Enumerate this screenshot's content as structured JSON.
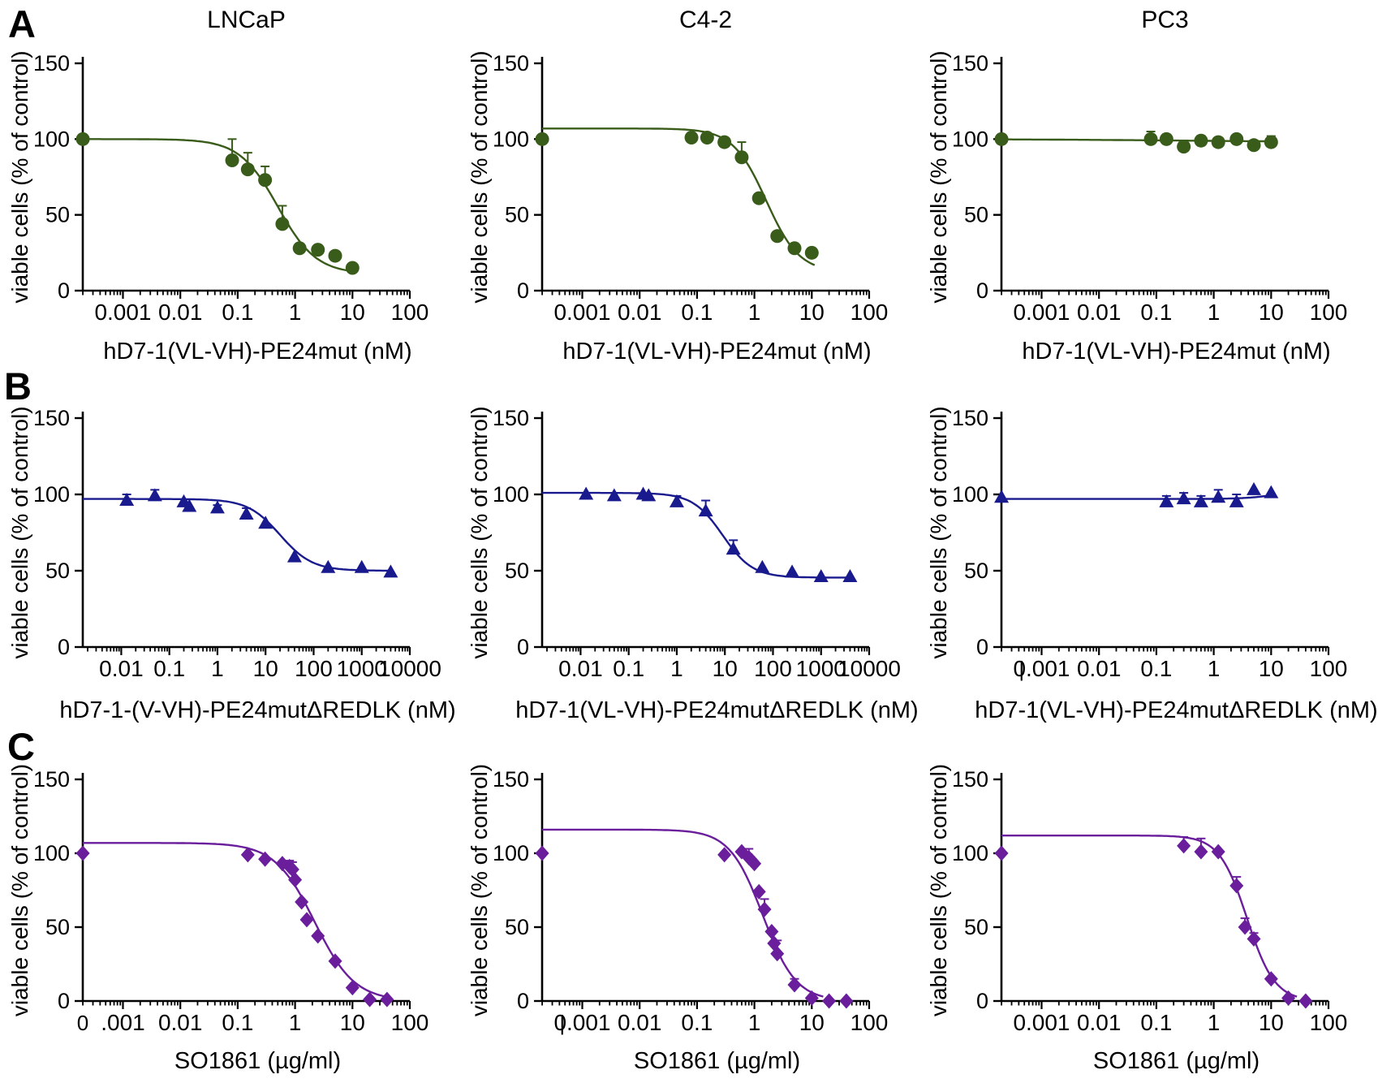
{
  "figure": {
    "panel_letters": [
      "A",
      "B",
      "C"
    ],
    "column_titles": [
      "LNCaP",
      "C4-2",
      "PC3"
    ],
    "y_axis_label": "viable cells (% of control)"
  },
  "colors": {
    "green": "#395C1A",
    "navy": "#1A1A8F",
    "purple": "#6A1E9C",
    "axis": "#000000"
  },
  "chart_data": [
    {
      "id": "A1",
      "row": "A",
      "cell_line": "LNCaP",
      "title": "LNCaP",
      "type": "scatter",
      "marker": "circle",
      "color": "#395C1A",
      "xlabel": "hD7-1(VL-VH)-PE24mut (nM)",
      "ylabel": "viable cells (% of control)",
      "xlog_min": -3.7,
      "xlog_max": 2,
      "ylim": [
        0,
        150
      ],
      "y_ticks": [
        0,
        50,
        100,
        150
      ],
      "x_decade_labels": {
        "-3": "0.001",
        "-2": "0.01",
        "-1": "0.1",
        "0": "1",
        "1": "10",
        "2": "100"
      },
      "extra_x_labels": [],
      "points": [
        {
          "x": 0.0002,
          "y": 100
        },
        {
          "x": 0.08,
          "y": 86,
          "err": 14
        },
        {
          "x": 0.15,
          "y": 80,
          "err": 11
        },
        {
          "x": 0.3,
          "y": 73,
          "err": 9
        },
        {
          "x": 0.6,
          "y": 44,
          "err": 12
        },
        {
          "x": 1.2,
          "y": 28
        },
        {
          "x": 2.5,
          "y": 27
        },
        {
          "x": 5,
          "y": 23
        },
        {
          "x": 10,
          "y": 15
        }
      ],
      "curve": {
        "top": 100,
        "bottom": 11,
        "ec50": 0.5,
        "hill": 1.3,
        "xlog_end": 1.03
      }
    },
    {
      "id": "A2",
      "row": "A",
      "cell_line": "C4-2",
      "title": "C4-2",
      "type": "scatter",
      "marker": "circle",
      "color": "#395C1A",
      "xlabel": "hD7-1(VL-VH)-PE24mut (nM)",
      "ylabel": "viable cells (% of control)",
      "xlog_min": -3.7,
      "xlog_max": 2,
      "ylim": [
        0,
        150
      ],
      "y_ticks": [
        0,
        50,
        100,
        150
      ],
      "x_decade_labels": {
        "-3": "0.001",
        "-2": "0.01",
        "-1": "0.1",
        "0": "1",
        "1": "10",
        "2": "100"
      },
      "extra_x_labels": [],
      "points": [
        {
          "x": 0.0002,
          "y": 100
        },
        {
          "x": 0.08,
          "y": 101,
          "err": 3
        },
        {
          "x": 0.15,
          "y": 101,
          "err": 3
        },
        {
          "x": 0.3,
          "y": 98
        },
        {
          "x": 0.6,
          "y": 88,
          "err": 10
        },
        {
          "x": 1.2,
          "y": 61
        },
        {
          "x": 2.5,
          "y": 36
        },
        {
          "x": 5,
          "y": 28
        },
        {
          "x": 10,
          "y": 25
        }
      ],
      "curve": {
        "top": 107,
        "bottom": 12,
        "ec50": 1.6,
        "hill": 1.5,
        "xlog_end": 1.05
      }
    },
    {
      "id": "A3",
      "row": "A",
      "cell_line": "PC3",
      "title": "PC3",
      "type": "scatter",
      "marker": "circle",
      "color": "#395C1A",
      "xlabel": "hD7-1(VL-VH)-PE24mut (nM)",
      "ylabel": "viable cells (% of control)",
      "xlog_min": -3.7,
      "xlog_max": 2,
      "ylim": [
        0,
        150
      ],
      "y_ticks": [
        0,
        50,
        100,
        150
      ],
      "x_decade_labels": {
        "-3": "0.001",
        "-2": "0.01",
        "-1": "0.1",
        "0": "1",
        "1": "10",
        "2": "100"
      },
      "extra_x_labels": [],
      "points": [
        {
          "x": 0.0002,
          "y": 100
        },
        {
          "x": 0.08,
          "y": 100,
          "err": 5
        },
        {
          "x": 0.15,
          "y": 100,
          "err": 3
        },
        {
          "x": 0.3,
          "y": 95
        },
        {
          "x": 0.6,
          "y": 99,
          "err": 3
        },
        {
          "x": 1.2,
          "y": 98
        },
        {
          "x": 2.5,
          "y": 100
        },
        {
          "x": 5,
          "y": 96
        },
        {
          "x": 10,
          "y": 98,
          "err": 4
        }
      ],
      "curve": {
        "top": 100,
        "bottom": 98,
        "ec50": 0.3,
        "hill": 0.3,
        "xlog_end": 1.03
      }
    },
    {
      "id": "B1",
      "row": "B",
      "cell_line": "LNCaP",
      "title": null,
      "type": "scatter",
      "marker": "triangle",
      "color": "#1A1A8F",
      "xlabel": "hD7-1-(V-VH)-PE24mutΔREDLK (nM)",
      "ylabel": "viable cells (% of control)",
      "xlog_min": -2.8,
      "xlog_max": 4,
      "ylim": [
        0,
        150
      ],
      "y_ticks": [
        0,
        50,
        100,
        150
      ],
      "x_decade_labels": {
        "-2": "0.01",
        "-1": "0.1",
        "0": "1",
        "1": "10",
        "2": "100",
        "3": "1000",
        "4": "10000"
      },
      "extra_x_labels": [],
      "points": [
        {
          "x": 0.013,
          "y": 96,
          "err": 4
        },
        {
          "x": 0.05,
          "y": 99,
          "err": 4
        },
        {
          "x": 0.2,
          "y": 95
        },
        {
          "x": 0.26,
          "y": 92
        },
        {
          "x": 1,
          "y": 91,
          "err": 2
        },
        {
          "x": 4,
          "y": 87,
          "err": 4
        },
        {
          "x": 10,
          "y": 81
        },
        {
          "x": 40,
          "y": 59
        },
        {
          "x": 200,
          "y": 52
        },
        {
          "x": 1000,
          "y": 52
        },
        {
          "x": 4000,
          "y": 49
        }
      ],
      "curve": {
        "top": 97,
        "bottom": 50,
        "ec50": 20,
        "hill": 1.3,
        "xlog_end": 3.62
      }
    },
    {
      "id": "B2",
      "row": "B",
      "cell_line": "C4-2",
      "title": null,
      "type": "scatter",
      "marker": "triangle",
      "color": "#1A1A8F",
      "xlabel": "hD7-1(VL-VH)-PE24mutΔREDLK (nM)",
      "ylabel": "viable cells (% of control)",
      "xlog_min": -2.8,
      "xlog_max": 4,
      "ylim": [
        0,
        150
      ],
      "y_ticks": [
        0,
        50,
        100,
        150
      ],
      "x_decade_labels": {
        "-2": "0.01",
        "-1": "0.1",
        "0": "1",
        "1": "10",
        "2": "100",
        "3": "1000",
        "4": "10000"
      },
      "extra_x_labels": [],
      "points": [
        {
          "x": 0.013,
          "y": 100
        },
        {
          "x": 0.05,
          "y": 99
        },
        {
          "x": 0.2,
          "y": 100
        },
        {
          "x": 0.26,
          "y": 99
        },
        {
          "x": 1,
          "y": 95,
          "err": 4
        },
        {
          "x": 4,
          "y": 89,
          "err": 7
        },
        {
          "x": 15,
          "y": 64,
          "err": 6
        },
        {
          "x": 60,
          "y": 52
        },
        {
          "x": 250,
          "y": 49
        },
        {
          "x": 1000,
          "y": 46
        },
        {
          "x": 4000,
          "y": 46
        }
      ],
      "curve": {
        "top": 101,
        "bottom": 45.5,
        "ec50": 9,
        "hill": 1.4,
        "xlog_end": 3.62
      }
    },
    {
      "id": "B3",
      "row": "B",
      "cell_line": "PC3",
      "title": null,
      "type": "scatter",
      "marker": "triangle",
      "color": "#1A1A8F",
      "xlabel": "hD7-1(VL-VH)-PE24mutΔREDLK (nM)",
      "ylabel": "viable cells (% of control)",
      "xlog_min": -3.7,
      "xlog_max": 2,
      "ylim": [
        0,
        150
      ],
      "y_ticks": [
        0,
        50,
        100,
        150
      ],
      "x_decade_labels": {
        "-3": "0.001",
        "-2": "0.01",
        "-1": "0.1",
        "0": "1",
        "1": "10",
        "2": "100"
      },
      "extra_x_labels": [
        {
          "log": -3.35,
          "label": "|"
        }
      ],
      "points": [
        {
          "x": 0.0002,
          "y": 98
        },
        {
          "x": 0.15,
          "y": 95,
          "err": 4
        },
        {
          "x": 0.3,
          "y": 97,
          "err": 4
        },
        {
          "x": 0.6,
          "y": 95,
          "err": 4
        },
        {
          "x": 1.2,
          "y": 98,
          "err": 5
        },
        {
          "x": 2.5,
          "y": 95,
          "err": 5
        },
        {
          "x": 5,
          "y": 103
        },
        {
          "x": 10,
          "y": 101
        }
      ],
      "curve": {
        "top": 97,
        "bottom": 104,
        "ec50": 15,
        "hill": 1.5,
        "xlog_end": 1.08
      }
    },
    {
      "id": "C1",
      "row": "C",
      "cell_line": "LNCaP",
      "title": null,
      "type": "scatter",
      "marker": "diamond",
      "color": "#6A1E9C",
      "xlabel": "SO1861 (µg/ml)",
      "ylabel": "viable cells (% of control)",
      "xlog_min": -3.7,
      "xlog_max": 2,
      "ylim": [
        0,
        150
      ],
      "y_ticks": [
        0,
        50,
        100,
        150
      ],
      "x_decade_labels": {
        "-3": ".001",
        "-2": "0.01",
        "-1": "0.1",
        "0": "1",
        "1": "10",
        "2": "100"
      },
      "extra_x_labels": [
        {
          "log": -3.7,
          "label": "0"
        }
      ],
      "points": [
        {
          "x": 0.0002,
          "y": 100
        },
        {
          "x": 0.15,
          "y": 99
        },
        {
          "x": 0.3,
          "y": 96
        },
        {
          "x": 0.6,
          "y": 93
        },
        {
          "x": 0.8,
          "y": 91,
          "err": 4
        },
        {
          "x": 0.9,
          "y": 89,
          "err": 5
        },
        {
          "x": 1.0,
          "y": 82
        },
        {
          "x": 1.3,
          "y": 67
        },
        {
          "x": 1.6,
          "y": 55
        },
        {
          "x": 2.5,
          "y": 44
        },
        {
          "x": 5,
          "y": 27
        },
        {
          "x": 10,
          "y": 9
        },
        {
          "x": 20,
          "y": 1
        },
        {
          "x": 40,
          "y": 1
        }
      ],
      "curve": {
        "top": 107,
        "bottom": 0,
        "ec50": 2.2,
        "hill": 1.25,
        "xlog_end": 1.66
      }
    },
    {
      "id": "C2",
      "row": "C",
      "cell_line": "C4-2",
      "title": null,
      "type": "scatter",
      "marker": "diamond",
      "color": "#6A1E9C",
      "xlabel": "SO1861 (µg/ml)",
      "ylabel": "viable cells (% of control)",
      "xlog_min": -3.7,
      "xlog_max": 2,
      "ylim": [
        0,
        150
      ],
      "y_ticks": [
        0,
        50,
        100,
        150
      ],
      "x_decade_labels": {
        "-3": "0.001",
        "-2": "0.01",
        "-1": "0.1",
        "0": "1",
        "1": "10",
        "2": "100"
      },
      "extra_x_labels": [
        {
          "log": -3.35,
          "label": "|"
        }
      ],
      "points": [
        {
          "x": 0.0002,
          "y": 100
        },
        {
          "x": 0.3,
          "y": 99
        },
        {
          "x": 0.6,
          "y": 101
        },
        {
          "x": 0.8,
          "y": 97,
          "err": 6
        },
        {
          "x": 0.9,
          "y": 95
        },
        {
          "x": 1.0,
          "y": 93
        },
        {
          "x": 1.2,
          "y": 74
        },
        {
          "x": 1.5,
          "y": 62,
          "err": 7
        },
        {
          "x": 2.0,
          "y": 47
        },
        {
          "x": 2.2,
          "y": 39
        },
        {
          "x": 2.5,
          "y": 32,
          "err": 9
        },
        {
          "x": 5,
          "y": 11,
          "err": 4
        },
        {
          "x": 10,
          "y": 2
        },
        {
          "x": 20,
          "y": 0
        },
        {
          "x": 40,
          "y": 0
        }
      ],
      "curve": {
        "top": 116,
        "bottom": 0,
        "ec50": 1.4,
        "hill": 1.5,
        "xlog_end": 1.2
      }
    },
    {
      "id": "C3",
      "row": "C",
      "cell_line": "PC3",
      "title": null,
      "type": "scatter",
      "marker": "diamond",
      "color": "#6A1E9C",
      "xlabel": "SO1861 (µg/ml)",
      "ylabel": "viable cells (% of control)",
      "xlog_min": -3.7,
      "xlog_max": 2,
      "ylim": [
        0,
        150
      ],
      "y_ticks": [
        0,
        50,
        100,
        150
      ],
      "x_decade_labels": {
        "-3": "0.001",
        "-2": "0.01",
        "-1": "0.1",
        "0": "1",
        "1": "10",
        "2": "100"
      },
      "extra_x_labels": [],
      "points": [
        {
          "x": 0.0002,
          "y": 100
        },
        {
          "x": 0.3,
          "y": 105,
          "err": 6
        },
        {
          "x": 0.6,
          "y": 101,
          "err": 9
        },
        {
          "x": 1.2,
          "y": 101
        },
        {
          "x": 2.5,
          "y": 78,
          "err": 6
        },
        {
          "x": 3.5,
          "y": 50,
          "err": 6
        },
        {
          "x": 5,
          "y": 42,
          "err": 4
        },
        {
          "x": 10,
          "y": 15
        },
        {
          "x": 20,
          "y": 2
        },
        {
          "x": 40,
          "y": 0
        }
      ],
      "curve": {
        "top": 112,
        "bottom": 0,
        "ec50": 3.8,
        "hill": 1.8,
        "xlog_end": 1.45
      }
    }
  ]
}
